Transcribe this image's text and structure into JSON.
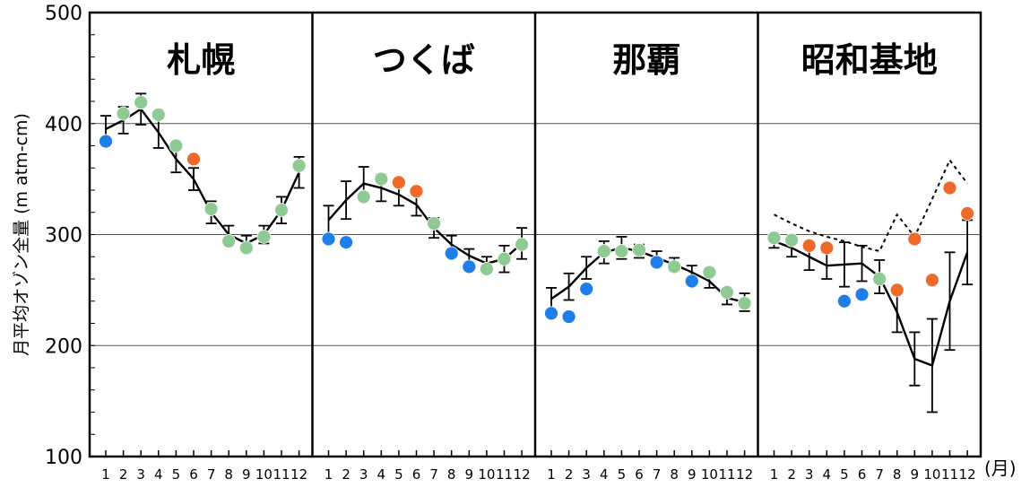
{
  "chart_data": {
    "type": "scatter",
    "ylabel": "月平均オゾン全量 (m atm-cm)",
    "xunit": "(月)",
    "ylim": [
      100,
      500
    ],
    "yticks": [
      100,
      200,
      300,
      400,
      500
    ],
    "grid": "horizontal at 200, 300, 400",
    "months": [
      "1",
      "2",
      "3",
      "4",
      "5",
      "6",
      "7",
      "8",
      "9",
      "10",
      "11",
      "12"
    ],
    "colors": {
      "low": "#1f7fe8",
      "normal": "#8fc994",
      "high": "#ee6a2a",
      "mean_line": "#000000"
    },
    "panels": [
      {
        "title": "札幌",
        "mean": [
          395,
          403,
          413,
          392,
          368,
          350,
          320,
          300,
          292,
          300,
          322,
          356
        ],
        "err": [
          12,
          12,
          14,
          14,
          12,
          10,
          10,
          8,
          7,
          8,
          12,
          14
        ],
        "points": [
          {
            "m": 1,
            "v": 384,
            "c": "low"
          },
          {
            "m": 2,
            "v": 409,
            "c": "normal"
          },
          {
            "m": 3,
            "v": 419,
            "c": "normal"
          },
          {
            "m": 4,
            "v": 408,
            "c": "normal"
          },
          {
            "m": 5,
            "v": 380,
            "c": "normal"
          },
          {
            "m": 6,
            "v": 368,
            "c": "high"
          },
          {
            "m": 7,
            "v": 323,
            "c": "normal"
          },
          {
            "m": 8,
            "v": 294,
            "c": "normal"
          },
          {
            "m": 9,
            "v": 288,
            "c": "normal"
          },
          {
            "m": 10,
            "v": 298,
            "c": "normal"
          },
          {
            "m": 11,
            "v": 322,
            "c": "normal"
          },
          {
            "m": 12,
            "v": 362,
            "c": "normal"
          }
        ]
      },
      {
        "title": "つくば",
        "mean": [
          313,
          331,
          346,
          342,
          336,
          327,
          306,
          291,
          281,
          274,
          278,
          292
        ],
        "err": [
          13,
          17,
          15,
          12,
          10,
          10,
          9,
          8,
          6,
          6,
          12,
          14
        ],
        "points": [
          {
            "m": 1,
            "v": 296,
            "c": "low"
          },
          {
            "m": 2,
            "v": 293,
            "c": "low"
          },
          {
            "m": 3,
            "v": 334,
            "c": "normal"
          },
          {
            "m": 4,
            "v": 350,
            "c": "normal"
          },
          {
            "m": 5,
            "v": 347,
            "c": "high"
          },
          {
            "m": 6,
            "v": 339,
            "c": "high"
          },
          {
            "m": 7,
            "v": 310,
            "c": "normal"
          },
          {
            "m": 8,
            "v": 283,
            "c": "low"
          },
          {
            "m": 9,
            "v": 271,
            "c": "low"
          },
          {
            "m": 10,
            "v": 269,
            "c": "normal"
          },
          {
            "m": 11,
            "v": 278,
            "c": "normal"
          },
          {
            "m": 12,
            "v": 291,
            "c": "normal"
          }
        ]
      },
      {
        "title": "那覇",
        "mean": [
          242,
          253,
          270,
          284,
          288,
          285,
          279,
          273,
          266,
          258,
          243,
          239
        ],
        "err": [
          10,
          12,
          10,
          10,
          10,
          6,
          6,
          6,
          6,
          6,
          6,
          8
        ],
        "points": [
          {
            "m": 1,
            "v": 229,
            "c": "low"
          },
          {
            "m": 2,
            "v": 226,
            "c": "low"
          },
          {
            "m": 3,
            "v": 251,
            "c": "low"
          },
          {
            "m": 4,
            "v": 285,
            "c": "normal"
          },
          {
            "m": 5,
            "v": 285,
            "c": "normal"
          },
          {
            "m": 6,
            "v": 286,
            "c": "normal"
          },
          {
            "m": 7,
            "v": 275,
            "c": "low"
          },
          {
            "m": 8,
            "v": 271,
            "c": "normal"
          },
          {
            "m": 9,
            "v": 258,
            "c": "low"
          },
          {
            "m": 10,
            "v": 266,
            "c": "normal"
          },
          {
            "m": 11,
            "v": 248,
            "c": "normal"
          },
          {
            "m": 12,
            "v": 238,
            "c": "normal"
          }
        ]
      },
      {
        "title": "昭和基地",
        "mean": [
          294,
          288,
          280,
          272,
          273,
          274,
          262,
          230,
          188,
          182,
          240,
          284
        ],
        "err": [
          6,
          8,
          12,
          12,
          20,
          16,
          15,
          18,
          24,
          42,
          44,
          29
        ],
        "dotted": [
          318,
          310,
          303,
          298,
          294,
          289,
          285,
          318,
          298,
          332,
          367,
          346
        ],
        "points": [
          {
            "m": 1,
            "v": 297,
            "c": "normal"
          },
          {
            "m": 2,
            "v": 295,
            "c": "normal"
          },
          {
            "m": 3,
            "v": 290,
            "c": "high"
          },
          {
            "m": 4,
            "v": 288,
            "c": "high"
          },
          {
            "m": 5,
            "v": 240,
            "c": "low"
          },
          {
            "m": 6,
            "v": 246,
            "c": "low"
          },
          {
            "m": 7,
            "v": 260,
            "c": "normal"
          },
          {
            "m": 8,
            "v": 250,
            "c": "high"
          },
          {
            "m": 9,
            "v": 296,
            "c": "high"
          },
          {
            "m": 10,
            "v": 259,
            "c": "high"
          },
          {
            "m": 11,
            "v": 342,
            "c": "high"
          },
          {
            "m": 12,
            "v": 319,
            "c": "high"
          }
        ]
      }
    ]
  }
}
